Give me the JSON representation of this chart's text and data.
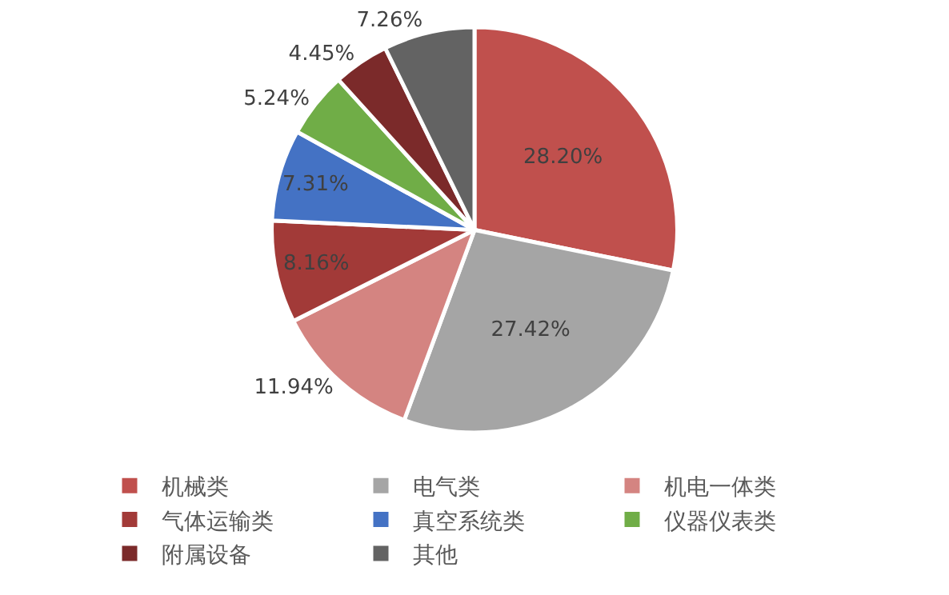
{
  "chart_data": {
    "type": "pie",
    "categories": [
      "机械类",
      "电气类",
      "机电一体类",
      "气体运输类",
      "真空系统类",
      "仪器仪表类",
      "附属设备",
      "其他"
    ],
    "values": [
      28.2,
      27.42,
      11.94,
      8.16,
      7.31,
      5.24,
      4.45,
      7.26
    ],
    "value_labels": [
      "28.20%",
      "27.42%",
      "11.94%",
      "8.16%",
      "7.31%",
      "5.24%",
      "4.45%",
      "7.26%"
    ],
    "colors": [
      "#c0504d",
      "#a5a5a5",
      "#d48481",
      "#a23a38",
      "#4472c4",
      "#70ad47",
      "#7b2a2a",
      "#636363"
    ],
    "legend": "bottom"
  }
}
